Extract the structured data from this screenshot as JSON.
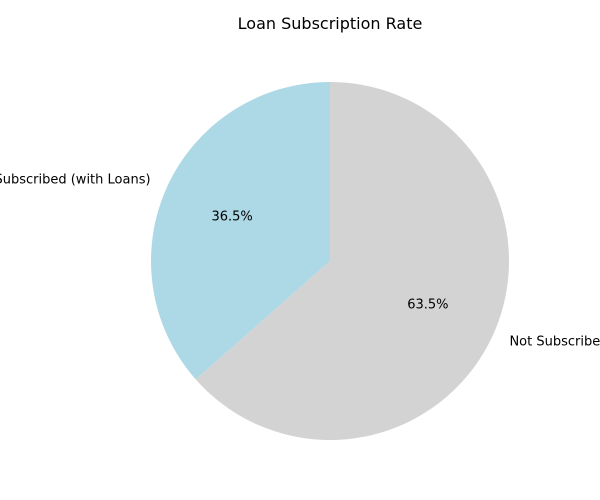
{
  "chart_data": {
    "type": "pie",
    "title": "Loan Subscription Rate",
    "slices": [
      {
        "label": "Subscribed (with Loans)",
        "value": 36.5,
        "pct_label": "36.5%",
        "color": "#add8e6"
      },
      {
        "label": "Not Subscribed",
        "value": 63.5,
        "pct_label": "63.5%",
        "color": "#d3d3d3"
      }
    ],
    "start_angle_deg": 90,
    "direction": "counterclockwise",
    "legend": "none"
  }
}
